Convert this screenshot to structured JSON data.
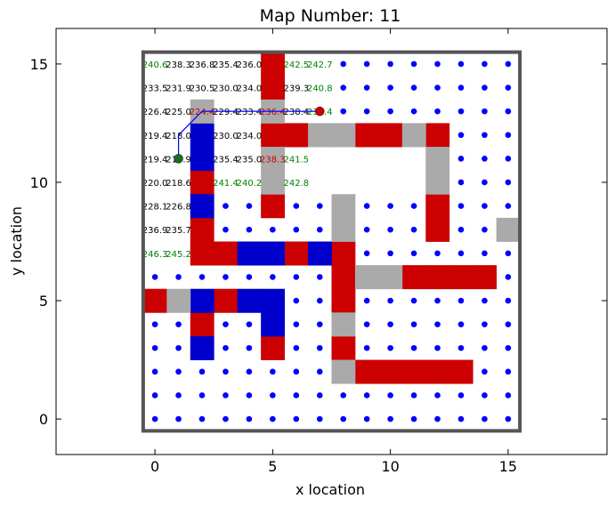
{
  "chart_data": {
    "type": "scatter",
    "title": "Map Number: 11",
    "xlabel": "x location",
    "ylabel": "y location",
    "xlim": [
      -4.2,
      19.2
    ],
    "ylim": [
      -1.5,
      16.5
    ],
    "xticks": [
      0,
      5,
      10,
      15
    ],
    "yticks": [
      0,
      5,
      10,
      15
    ],
    "grid": false,
    "boundary": {
      "x0": -0.5,
      "x1": 15.5,
      "y0": -0.5,
      "y1": 15.5
    },
    "colors": {
      "obstacle": "#cc0000",
      "water": "#0000cc",
      "rock": "#aaaaaa",
      "point": "#0000ff",
      "path": "#0000ff",
      "start": "#1e6b1e",
      "goal": "#cc0000",
      "frame": "#555555",
      "val_black": "#000000",
      "val_green": "#008000",
      "val_red": "#cc0000"
    },
    "cells": {
      "red": [
        [
          5,
          15
        ],
        [
          5,
          14
        ],
        [
          5,
          12
        ],
        [
          6,
          12
        ],
        [
          9,
          12
        ],
        [
          10,
          12
        ],
        [
          12,
          12
        ],
        [
          2,
          10
        ],
        [
          5,
          9
        ],
        [
          12,
          9
        ],
        [
          12,
          8
        ],
        [
          2,
          8
        ],
        [
          2,
          7
        ],
        [
          3,
          7
        ],
        [
          6,
          7
        ],
        [
          8,
          7
        ],
        [
          8,
          6
        ],
        [
          11,
          6
        ],
        [
          12,
          6
        ],
        [
          13,
          6
        ],
        [
          14,
          6
        ],
        [
          8,
          5
        ],
        [
          0,
          5
        ],
        [
          3,
          5
        ],
        [
          2,
          4
        ],
        [
          8,
          3
        ],
        [
          5,
          3
        ],
        [
          9,
          2
        ],
        [
          10,
          2
        ],
        [
          11,
          2
        ],
        [
          12,
          2
        ],
        [
          13,
          2
        ]
      ],
      "blue": [
        [
          2,
          12
        ],
        [
          2,
          11
        ],
        [
          2,
          9
        ],
        [
          4,
          7
        ],
        [
          5,
          7
        ],
        [
          7,
          7
        ],
        [
          2,
          5
        ],
        [
          4,
          5
        ],
        [
          5,
          5
        ],
        [
          5,
          4
        ],
        [
          2,
          3
        ]
      ],
      "gray": [
        [
          5,
          13
        ],
        [
          2,
          13
        ],
        [
          7,
          12
        ],
        [
          8,
          12
        ],
        [
          11,
          12
        ],
        [
          5,
          11
        ],
        [
          12,
          11
        ],
        [
          5,
          10
        ],
        [
          12,
          10
        ],
        [
          8,
          9
        ],
        [
          8,
          8
        ],
        [
          15,
          8
        ],
        [
          9,
          6
        ],
        [
          10,
          6
        ],
        [
          1,
          5
        ],
        [
          8,
          4
        ],
        [
          8,
          2
        ]
      ]
    },
    "values": [
      {
        "x": 0,
        "y": 15,
        "v": "240.6",
        "c": "green"
      },
      {
        "x": 1,
        "y": 15,
        "v": "238.3",
        "c": "black"
      },
      {
        "x": 2,
        "y": 15,
        "v": "236.8",
        "c": "black"
      },
      {
        "x": 3,
        "y": 15,
        "v": "235.4",
        "c": "black"
      },
      {
        "x": 4,
        "y": 15,
        "v": "236.0",
        "c": "black"
      },
      {
        "x": 6,
        "y": 15,
        "v": "242.5",
        "c": "green"
      },
      {
        "x": 7,
        "y": 15,
        "v": "242.7",
        "c": "green"
      },
      {
        "x": 0,
        "y": 14,
        "v": "233.5",
        "c": "black"
      },
      {
        "x": 1,
        "y": 14,
        "v": "231.9",
        "c": "black"
      },
      {
        "x": 2,
        "y": 14,
        "v": "230.5",
        "c": "black"
      },
      {
        "x": 3,
        "y": 14,
        "v": "230.0",
        "c": "black"
      },
      {
        "x": 4,
        "y": 14,
        "v": "234.0",
        "c": "black"
      },
      {
        "x": 6,
        "y": 14,
        "v": "239.3",
        "c": "black"
      },
      {
        "x": 7,
        "y": 14,
        "v": "240.8",
        "c": "green"
      },
      {
        "x": 0,
        "y": 13,
        "v": "226.4",
        "c": "black"
      },
      {
        "x": 1,
        "y": 13,
        "v": "225.0",
        "c": "black"
      },
      {
        "x": 2,
        "y": 13,
        "v": "224.4",
        "c": "red"
      },
      {
        "x": 3,
        "y": 13,
        "v": "229.4",
        "c": "black"
      },
      {
        "x": 4,
        "y": 13,
        "v": "233.4",
        "c": "black"
      },
      {
        "x": 5,
        "y": 13,
        "v": "236.4",
        "c": "red"
      },
      {
        "x": 6,
        "y": 13,
        "v": "238.4",
        "c": "black"
      },
      {
        "x": 7,
        "y": 13,
        "v": "239.4",
        "c": "green"
      },
      {
        "x": 0,
        "y": 12,
        "v": "219.4",
        "c": "black"
      },
      {
        "x": 1,
        "y": 12,
        "v": "218.0",
        "c": "black"
      },
      {
        "x": 3,
        "y": 12,
        "v": "230.0",
        "c": "black"
      },
      {
        "x": 4,
        "y": 12,
        "v": "234.0",
        "c": "black"
      },
      {
        "x": 0,
        "y": 11,
        "v": "219.4",
        "c": "black"
      },
      {
        "x": 1,
        "y": 11,
        "v": "218.9",
        "c": "black"
      },
      {
        "x": 3,
        "y": 11,
        "v": "235.4",
        "c": "black"
      },
      {
        "x": 4,
        "y": 11,
        "v": "235.0",
        "c": "black"
      },
      {
        "x": 5,
        "y": 11,
        "v": "238.3",
        "c": "red"
      },
      {
        "x": 6,
        "y": 11,
        "v": "241.5",
        "c": "green"
      },
      {
        "x": 0,
        "y": 10,
        "v": "220.0",
        "c": "black"
      },
      {
        "x": 1,
        "y": 10,
        "v": "218.6",
        "c": "black"
      },
      {
        "x": 3,
        "y": 10,
        "v": "241.4",
        "c": "green"
      },
      {
        "x": 4,
        "y": 10,
        "v": "240.2",
        "c": "green"
      },
      {
        "x": 6,
        "y": 10,
        "v": "242.8",
        "c": "green"
      },
      {
        "x": 0,
        "y": 9,
        "v": "228.1",
        "c": "black"
      },
      {
        "x": 1,
        "y": 9,
        "v": "226.8",
        "c": "black"
      },
      {
        "x": 0,
        "y": 8,
        "v": "236.9",
        "c": "black"
      },
      {
        "x": 1,
        "y": 8,
        "v": "235.7",
        "c": "black"
      },
      {
        "x": 0,
        "y": 7,
        "v": "246.3",
        "c": "green"
      },
      {
        "x": 1,
        "y": 7,
        "v": "245.2",
        "c": "green"
      }
    ],
    "points": [
      [
        8,
        15
      ],
      [
        9,
        15
      ],
      [
        10,
        15
      ],
      [
        11,
        15
      ],
      [
        12,
        15
      ],
      [
        13,
        15
      ],
      [
        14,
        15
      ],
      [
        15,
        15
      ],
      [
        8,
        14
      ],
      [
        9,
        14
      ],
      [
        10,
        14
      ],
      [
        11,
        14
      ],
      [
        12,
        14
      ],
      [
        13,
        14
      ],
      [
        14,
        14
      ],
      [
        15,
        14
      ],
      [
        8,
        13
      ],
      [
        9,
        13
      ],
      [
        10,
        13
      ],
      [
        11,
        13
      ],
      [
        12,
        13
      ],
      [
        13,
        13
      ],
      [
        14,
        13
      ],
      [
        15,
        13
      ],
      [
        13,
        12
      ],
      [
        14,
        12
      ],
      [
        15,
        12
      ],
      [
        13,
        11
      ],
      [
        14,
        11
      ],
      [
        15,
        11
      ],
      [
        13,
        10
      ],
      [
        14,
        10
      ],
      [
        15,
        10
      ],
      [
        3,
        9
      ],
      [
        4,
        9
      ],
      [
        6,
        9
      ],
      [
        7,
        9
      ],
      [
        9,
        9
      ],
      [
        10,
        9
      ],
      [
        11,
        9
      ],
      [
        13,
        9
      ],
      [
        14,
        9
      ],
      [
        15,
        9
      ],
      [
        3,
        8
      ],
      [
        4,
        8
      ],
      [
        5,
        8
      ],
      [
        6,
        8
      ],
      [
        7,
        8
      ],
      [
        9,
        8
      ],
      [
        10,
        8
      ],
      [
        11,
        8
      ],
      [
        13,
        8
      ],
      [
        14,
        8
      ],
      [
        9,
        7
      ],
      [
        10,
        7
      ],
      [
        11,
        7
      ],
      [
        12,
        7
      ],
      [
        13,
        7
      ],
      [
        14,
        7
      ],
      [
        15,
        7
      ],
      [
        0,
        6
      ],
      [
        1,
        6
      ],
      [
        2,
        6
      ],
      [
        3,
        6
      ],
      [
        4,
        6
      ],
      [
        5,
        6
      ],
      [
        6,
        6
      ],
      [
        7,
        6
      ],
      [
        15,
        6
      ],
      [
        6,
        5
      ],
      [
        7,
        5
      ],
      [
        9,
        5
      ],
      [
        10,
        5
      ],
      [
        11,
        5
      ],
      [
        12,
        5
      ],
      [
        13,
        5
      ],
      [
        14,
        5
      ],
      [
        15,
        5
      ],
      [
        0,
        4
      ],
      [
        1,
        4
      ],
      [
        3,
        4
      ],
      [
        4,
        4
      ],
      [
        6,
        4
      ],
      [
        7,
        4
      ],
      [
        9,
        4
      ],
      [
        10,
        4
      ],
      [
        11,
        4
      ],
      [
        12,
        4
      ],
      [
        13,
        4
      ],
      [
        14,
        4
      ],
      [
        15,
        4
      ],
      [
        0,
        3
      ],
      [
        1,
        3
      ],
      [
        3,
        3
      ],
      [
        4,
        3
      ],
      [
        6,
        3
      ],
      [
        7,
        3
      ],
      [
        9,
        3
      ],
      [
        10,
        3
      ],
      [
        11,
        3
      ],
      [
        12,
        3
      ],
      [
        13,
        3
      ],
      [
        14,
        3
      ],
      [
        15,
        3
      ],
      [
        0,
        2
      ],
      [
        1,
        2
      ],
      [
        2,
        2
      ],
      [
        3,
        2
      ],
      [
        4,
        2
      ],
      [
        5,
        2
      ],
      [
        6,
        2
      ],
      [
        7,
        2
      ],
      [
        14,
        2
      ],
      [
        15,
        2
      ],
      [
        0,
        1
      ],
      [
        1,
        1
      ],
      [
        2,
        1
      ],
      [
        3,
        1
      ],
      [
        4,
        1
      ],
      [
        5,
        1
      ],
      [
        6,
        1
      ],
      [
        7,
        1
      ],
      [
        8,
        1
      ],
      [
        9,
        1
      ],
      [
        10,
        1
      ],
      [
        11,
        1
      ],
      [
        12,
        1
      ],
      [
        13,
        1
      ],
      [
        14,
        1
      ],
      [
        15,
        1
      ],
      [
        0,
        0
      ],
      [
        1,
        0
      ],
      [
        2,
        0
      ],
      [
        3,
        0
      ],
      [
        4,
        0
      ],
      [
        5,
        0
      ],
      [
        6,
        0
      ],
      [
        7,
        0
      ],
      [
        8,
        0
      ],
      [
        9,
        0
      ],
      [
        10,
        0
      ],
      [
        11,
        0
      ],
      [
        12,
        0
      ],
      [
        13,
        0
      ],
      [
        14,
        0
      ],
      [
        15,
        0
      ]
    ],
    "path": [
      [
        1,
        11
      ],
      [
        1,
        12
      ],
      [
        2,
        13
      ],
      [
        3,
        13
      ],
      [
        4,
        13
      ],
      [
        5,
        13
      ],
      [
        6,
        13
      ],
      [
        7,
        13
      ]
    ],
    "start": [
      1,
      11
    ],
    "goal": [
      7,
      13
    ]
  }
}
